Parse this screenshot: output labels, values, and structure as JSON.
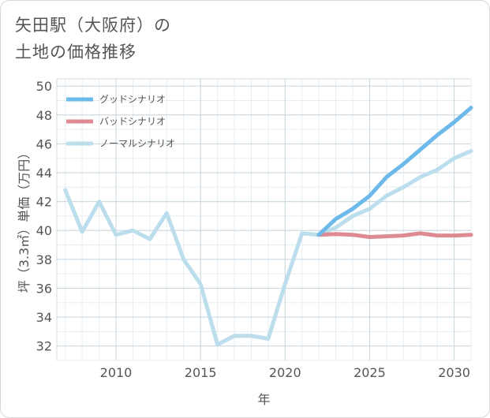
{
  "chart_data": {
    "type": "line",
    "title_line1": "矢田駅（大阪府）の",
    "title_line2": "土地の価格推移",
    "xlabel": "年",
    "ylabel": "坪（3.3㎡）単価（万円）",
    "xlim": [
      2006.5,
      2031
    ],
    "ylim": [
      31,
      50.5
    ],
    "xticks": [
      2010,
      2015,
      2020,
      2025,
      2030
    ],
    "yticks": [
      32,
      34,
      36,
      38,
      40,
      42,
      44,
      46,
      48,
      50
    ],
    "legend_position": "top-left",
    "series": [
      {
        "name": "グッドシナリオ",
        "color": "#6cb9ea",
        "x": [
          2022,
          2023,
          2024,
          2025,
          2026,
          2027,
          2028,
          2029,
          2030,
          2031
        ],
        "values": [
          39.7,
          40.8,
          41.5,
          42.4,
          43.7,
          44.6,
          45.6,
          46.6,
          47.5,
          48.5
        ]
      },
      {
        "name": "バッドシナリオ",
        "color": "#de8a92",
        "x": [
          2022,
          2023,
          2024,
          2025,
          2026,
          2027,
          2028,
          2029,
          2030,
          2031
        ],
        "values": [
          39.7,
          39.75,
          39.7,
          39.55,
          39.6,
          39.65,
          39.8,
          39.65,
          39.65,
          39.7
        ]
      },
      {
        "name": "ノーマルシナリオ",
        "color": "#bcdeec",
        "x": [
          2007,
          2008,
          2009,
          2010,
          2011,
          2012,
          2013,
          2014,
          2015,
          2016,
          2017,
          2018,
          2019,
          2020,
          2021,
          2022,
          2023,
          2024,
          2025,
          2026,
          2027,
          2028,
          2029,
          2030,
          2031
        ],
        "values": [
          42.8,
          39.9,
          42.0,
          39.7,
          40.0,
          39.4,
          41.2,
          38.0,
          36.3,
          32.1,
          32.7,
          32.7,
          32.5,
          36.3,
          39.8,
          39.7,
          40.2,
          41.0,
          41.5,
          42.4,
          43.0,
          43.7,
          44.2,
          45.0,
          45.5
        ]
      }
    ]
  }
}
